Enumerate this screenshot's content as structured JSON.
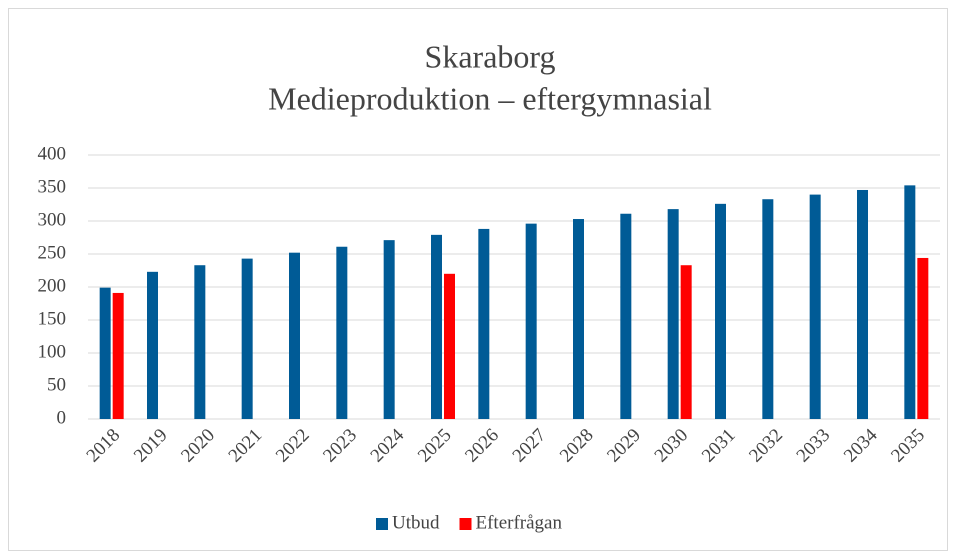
{
  "chart_data": {
    "type": "bar",
    "title": "Skaraborg",
    "subtitle": "Medieproduktion – eftergymnasial",
    "categories": [
      "2018",
      "2019",
      "2020",
      "2021",
      "2022",
      "2023",
      "2024",
      "2025",
      "2026",
      "2027",
      "2028",
      "2029",
      "2030",
      "2031",
      "2032",
      "2033",
      "2034",
      "2035"
    ],
    "series": [
      {
        "name": "Utbud",
        "color": "#005b96",
        "values": [
          199,
          223,
          233,
          243,
          252,
          261,
          271,
          279,
          288,
          296,
          303,
          311,
          318,
          326,
          333,
          340,
          347,
          354
        ]
      },
      {
        "name": "Efterfrågan",
        "color": "#ff0000",
        "values": [
          191,
          null,
          null,
          null,
          null,
          null,
          null,
          220,
          null,
          null,
          null,
          null,
          233,
          null,
          null,
          null,
          null,
          244
        ]
      }
    ],
    "ylim": [
      0,
      400
    ],
    "yticks": [
      0,
      50,
      100,
      150,
      200,
      250,
      300,
      350,
      400
    ],
    "grid": true,
    "legend": "bottom"
  }
}
